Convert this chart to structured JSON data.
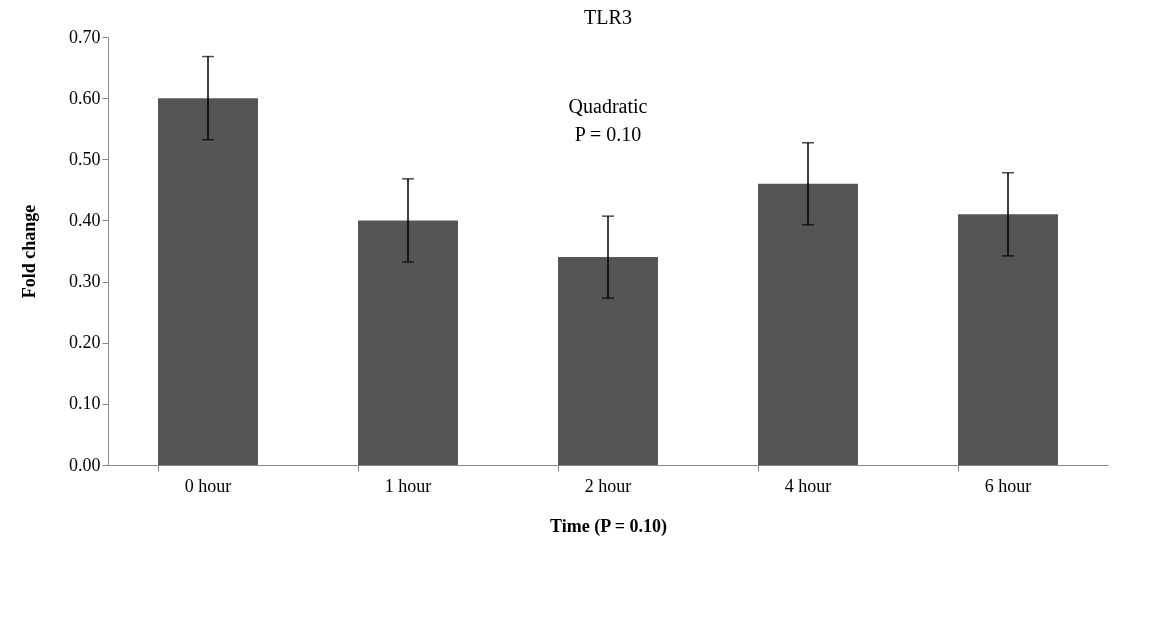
{
  "chart_data": {
    "type": "bar",
    "title": "TLR3",
    "xlabel": "Time (P  = 0.10)",
    "ylabel": "Fold change",
    "categories": [
      "0 hour",
      "1 hour",
      "2 hour",
      "4 hour",
      "6 hour"
    ],
    "values": [
      0.6,
      0.4,
      0.34,
      0.46,
      0.41
    ],
    "errors": [
      0.068,
      0.068,
      0.067,
      0.067,
      0.068
    ],
    "color": "#555555",
    "ylim": [
      0,
      0.7
    ],
    "yticks": [
      {
        "value": 0,
        "label": "0.00"
      },
      {
        "value": 0.1,
        "label": "0.10"
      },
      {
        "value": 0.2,
        "label": "0.20"
      },
      {
        "value": 0.3,
        "label": "0.30"
      },
      {
        "value": 0.4,
        "label": "0.40"
      },
      {
        "value": 0.5,
        "label": "0.50"
      },
      {
        "value": 0.6,
        "label": "0.60"
      },
      {
        "value": 0.7,
        "label": "0.70"
      }
    ],
    "annotations": [
      "Quadratic",
      "P = 0.10"
    ],
    "grid": false
  }
}
